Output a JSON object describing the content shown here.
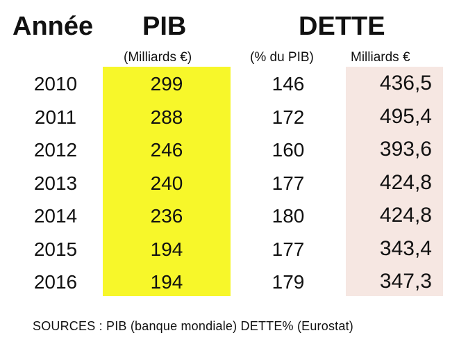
{
  "headers": {
    "year": "Année",
    "pib": "PIB",
    "dette": "DETTE",
    "pib_unit": "(Milliards €)",
    "dette_pct_unit": "(% du PIB)",
    "dette_amount_unit": "Milliards €"
  },
  "rows": [
    {
      "year": "2010",
      "pib": "299",
      "dette_pct": "146",
      "dette_amount": "436,5"
    },
    {
      "year": "2011",
      "pib": "288",
      "dette_pct": "172",
      "dette_amount": "495,4"
    },
    {
      "year": "2012",
      "pib": "246",
      "dette_pct": "160",
      "dette_amount": "393,6"
    },
    {
      "year": "2013",
      "pib": "240",
      "dette_pct": "177",
      "dette_amount": "424,8"
    },
    {
      "year": "2014",
      "pib": "236",
      "dette_pct": "180",
      "dette_amount": "424,8"
    },
    {
      "year": "2015",
      "pib": "194",
      "dette_pct": "177",
      "dette_amount": "343,4"
    },
    {
      "year": "2016",
      "pib": "194",
      "dette_pct": "179",
      "dette_amount": "347,3"
    }
  ],
  "sources": "SOURCES : PIB (banque mondiale) DETTE% (Eurostat)",
  "colors": {
    "pib_highlight": "#f7f72a",
    "dette_highlight": "#f6e7e2"
  }
}
